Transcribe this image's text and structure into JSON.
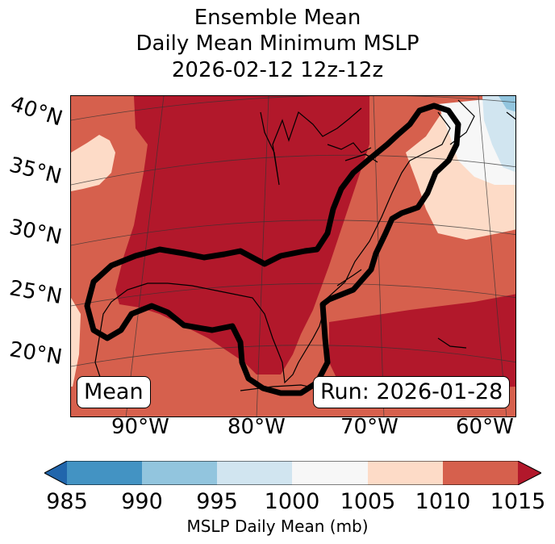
{
  "title": {
    "line1": "Ensemble Mean",
    "line2": "Daily Mean Minimum MSLP",
    "line3": "2026-02-12 12z-12z"
  },
  "lat_labels": [
    "40°N",
    "35°N",
    "30°N",
    "25°N",
    "20°N"
  ],
  "lon_labels": [
    "90°W",
    "80°W",
    "70°W",
    "60°W"
  ],
  "annotations": {
    "left": "Mean",
    "right": "Run: 2026-01-28"
  },
  "colorbar": {
    "ticks": [
      "985",
      "990",
      "995",
      "1000",
      "1005",
      "1010",
      "1015"
    ],
    "label": "MSLP Daily Mean (mb)",
    "colors": [
      "#2166ac",
      "#4393c3",
      "#92c5de",
      "#d1e5f0",
      "#f7f7f7",
      "#fddbc7",
      "#d6604d",
      "#b2182b"
    ]
  },
  "field_colors": {
    "c_1015": "#b2182b",
    "c_1010": "#d6604d",
    "c_1005": "#fddbc7",
    "c_1000": "#f7f7f7",
    "c_995": "#d1e5f0",
    "c_990": "#92c5de"
  }
}
